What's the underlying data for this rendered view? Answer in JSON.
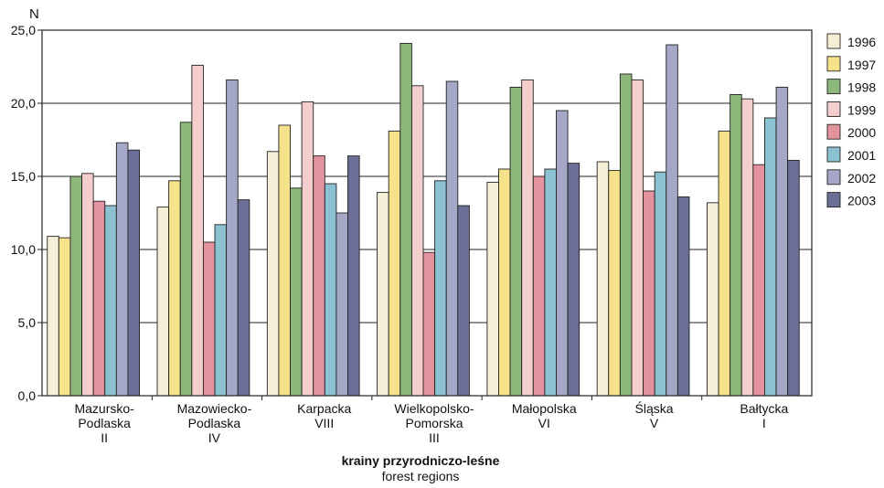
{
  "chart_data": {
    "type": "bar",
    "ylabel": "N",
    "xlabel": "krainy przyrodniczo-leśne",
    "xlabel_sub": "forest regions",
    "ylim": [
      0,
      25
    ],
    "yticks": [
      "0,0",
      "5,0",
      "10,0",
      "15,0",
      "20,0",
      "25,0"
    ],
    "grid": true,
    "legend_position": "right",
    "categories": [
      [
        "Mazursko-",
        "Podlaska",
        "II"
      ],
      [
        "Mazowiecko-",
        "Podlaska",
        "IV"
      ],
      [
        "Karpacka",
        "VIII"
      ],
      [
        "Wielkopolsko-",
        "Pomorska",
        "III"
      ],
      [
        "Małopolska",
        "VI"
      ],
      [
        "Śląska",
        "V"
      ],
      [
        "Bałtycka",
        "I"
      ]
    ],
    "series": [
      {
        "name": "1996",
        "color": "#f4efd6",
        "values": [
          10.9,
          12.9,
          16.7,
          13.9,
          14.6,
          16.0,
          13.2
        ]
      },
      {
        "name": "1997",
        "color": "#f5e28a",
        "values": [
          10.8,
          14.7,
          18.5,
          18.1,
          15.5,
          15.4,
          18.1
        ]
      },
      {
        "name": "1998",
        "color": "#8db87a",
        "values": [
          15.0,
          18.7,
          14.2,
          24.1,
          21.1,
          22.0,
          20.6
        ]
      },
      {
        "name": "1999",
        "color": "#f4cdcd",
        "values": [
          15.2,
          22.6,
          20.1,
          21.2,
          21.6,
          21.6,
          20.3
        ]
      },
      {
        "name": "2000",
        "color": "#e3939d",
        "values": [
          13.3,
          10.5,
          16.4,
          9.8,
          15.0,
          14.0,
          15.8
        ]
      },
      {
        "name": "2001",
        "color": "#8cc1d2",
        "values": [
          13.0,
          11.7,
          14.5,
          14.7,
          15.5,
          15.3,
          19.0
        ]
      },
      {
        "name": "2002",
        "color": "#a5a7c6",
        "values": [
          17.3,
          21.6,
          12.5,
          21.5,
          19.5,
          24.0,
          21.1
        ]
      },
      {
        "name": "2003",
        "color": "#6b6f98",
        "values": [
          16.8,
          13.4,
          16.4,
          13.0,
          15.9,
          13.6,
          16.1
        ]
      }
    ]
  }
}
